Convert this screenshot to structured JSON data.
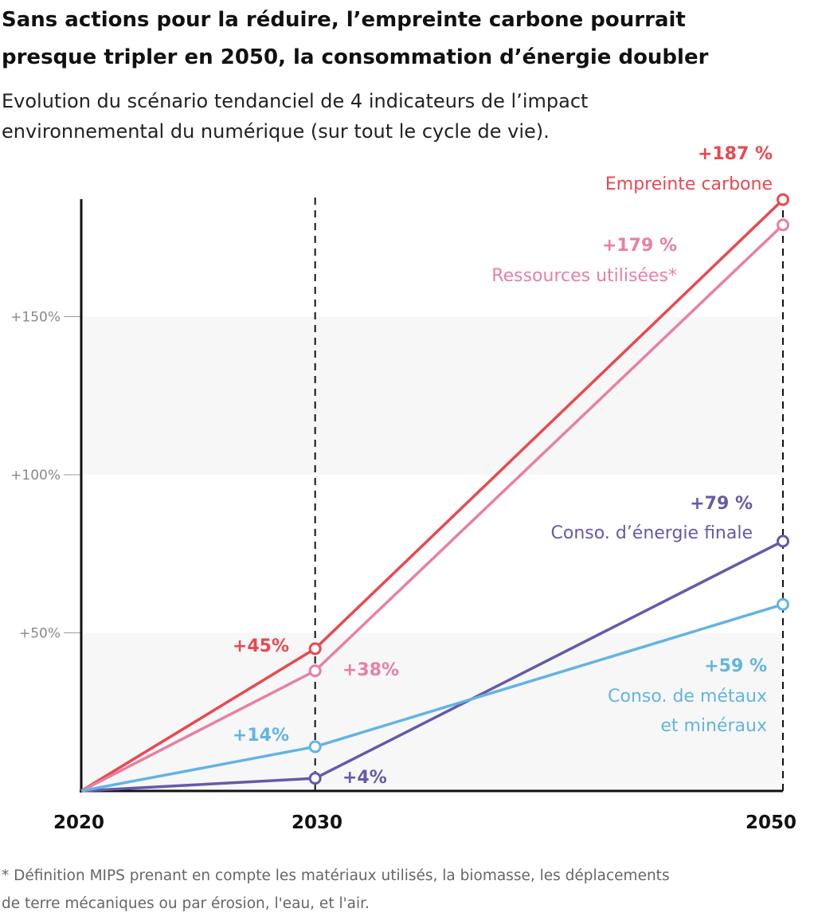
{
  "title": [
    "Sans actions pour la réduire, l’empreinte carbone pourrait",
    "presque tripler en 2050, la consommation d’énergie doubler"
  ],
  "subtitle": [
    "Evolution du scénario tendanciel de 4 indicateurs de l’impact",
    "environnemental du numérique (sur tout le cycle de vie)."
  ],
  "footnote": [
    "* Définition MIPS prenant en compte les matériaux utilisés, la biomasse, les déplacements",
    "de terre mécaniques ou par érosion, l'eau, et l'air."
  ],
  "chart_data": {
    "type": "line",
    "x": [
      2020,
      2030,
      2050
    ],
    "xticks": [
      "2020",
      "2030",
      "2050"
    ],
    "yticks": [
      {
        "v": 50,
        "label": "+50%"
      },
      {
        "v": 100,
        "label": "+100%"
      },
      {
        "v": 150,
        "label": "+150%"
      }
    ],
    "ylim": [
      0,
      190
    ],
    "grid": "alternating bands",
    "series": [
      {
        "name": "Empreinte carbone",
        "color": "#e9484f",
        "values": [
          0,
          45,
          187
        ],
        "label_2030": "+45%",
        "label_2050": "+187 %",
        "name_lines": [
          "Empreinte carbone"
        ]
      },
      {
        "name": "Ressources utilisées*",
        "color": "#e87fa4",
        "values": [
          0,
          38,
          179
        ],
        "label_2030": "+38%",
        "label_2050": "+179 %",
        "name_lines": [
          "Ressources utilisées*"
        ]
      },
      {
        "name": "Conso. d’énergie finale",
        "color": "#655aa8",
        "values": [
          0,
          4,
          79
        ],
        "label_2030": "+4%",
        "label_2050": "+79 %",
        "name_lines": [
          "Conso. d’énergie finale"
        ]
      },
      {
        "name": "Conso. de métaux et minéraux",
        "color": "#62b4e2",
        "values": [
          0,
          14,
          59
        ],
        "label_2030": "+14%",
        "label_2050": "+59 %",
        "name_lines": [
          "Conso. de métaux",
          "et minéraux"
        ]
      }
    ]
  }
}
